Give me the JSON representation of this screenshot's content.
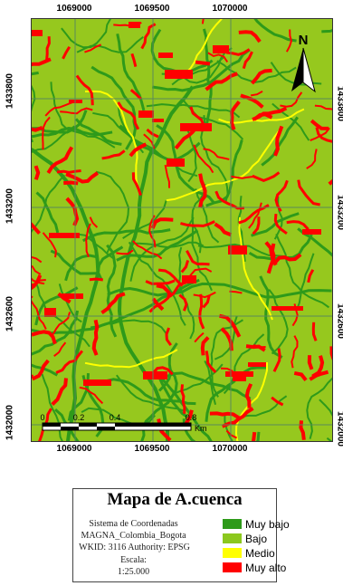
{
  "map": {
    "top_ticks": [
      "1069000",
      "1069500",
      "1070000"
    ],
    "bottom_ticks": [
      "1069000",
      "1069500",
      "1070000"
    ],
    "left_ticks": [
      "1433800",
      "1433200",
      "1432600",
      "1432000"
    ],
    "right_ticks": [
      "1433800",
      "1433200",
      "1432600",
      "1432000"
    ],
    "north_label": "N",
    "scale_bar": {
      "labels": [
        "0",
        "0.2",
        "0.4",
        "0.8"
      ],
      "unit": "Km"
    }
  },
  "legend": {
    "title": "Mapa de A.cuenca",
    "coordinate_system": "Sistema de Coordenadas",
    "datum": "MAGNA_Colombia_Bogota",
    "wkid": "WKID: 3116 Authority: EPSG",
    "scale_label": "Escala:",
    "scale_value": "1:25.000",
    "classes": [
      {
        "label": "Muy bajo",
        "color": "#2e9a1a"
      },
      {
        "label": "Bajo",
        "color": "#8cc81e"
      },
      {
        "label": "Medio",
        "color": "#ffff00"
      },
      {
        "label": "Muy alto",
        "color": "#ff0000"
      }
    ]
  },
  "colors": {
    "base": "#96c81e",
    "grid": "#5a8a5a"
  }
}
